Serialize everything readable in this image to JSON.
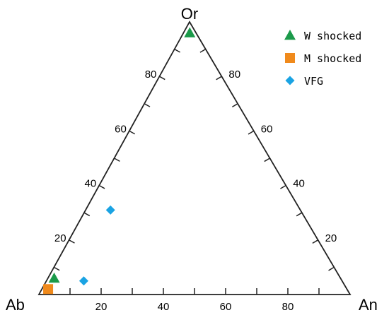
{
  "chart_data": {
    "type": "ternary-scatter",
    "vertices": {
      "top": "Or",
      "left": "Ab",
      "right": "An"
    },
    "ticks": {
      "bottom": [
        "20",
        "40",
        "60",
        "80"
      ],
      "left": [
        "20",
        "40",
        "60",
        "80"
      ],
      "right": [
        "20",
        "40",
        "60",
        "80"
      ]
    },
    "legend_position": "top-right",
    "series": [
      {
        "name": "W shocked",
        "marker": "triangle",
        "color": "#1b9a4a",
        "points": [
          {
            "Or": 96,
            "An": 2,
            "Ab": 2
          },
          {
            "Or": 6,
            "An": 2,
            "Ab": 92
          }
        ]
      },
      {
        "name": "M shocked",
        "marker": "square",
        "color": "#f08a1c",
        "points": [
          {
            "Or": 2,
            "An": 2,
            "Ab": 96
          }
        ]
      },
      {
        "name": "VFG",
        "marker": "diamond",
        "color": "#1aa3e3",
        "points": [
          {
            "Or": 31,
            "An": 8,
            "Ab": 61
          },
          {
            "Or": 5,
            "An": 12,
            "Ab": 83
          }
        ]
      }
    ]
  }
}
